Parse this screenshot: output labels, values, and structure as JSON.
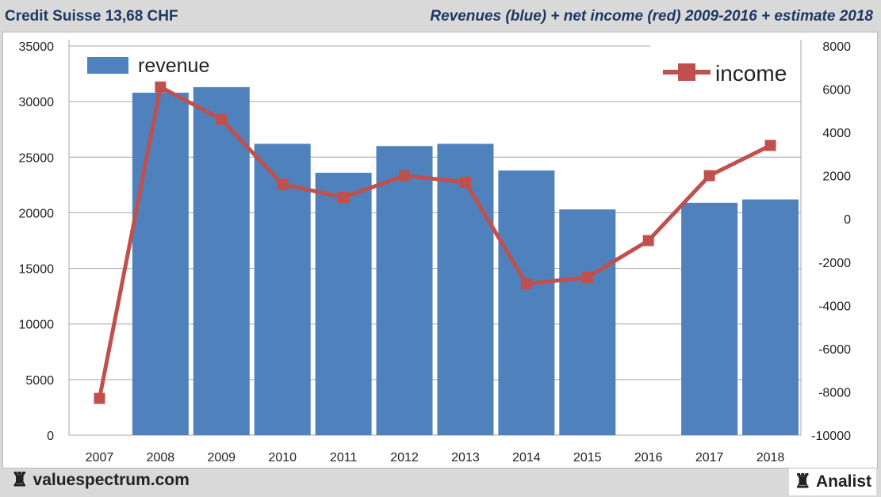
{
  "header": {
    "left": "Credit Suisse 13,68 CHF",
    "right": "Revenues (blue) + net income (red) 2009-2016 + estimate 2018"
  },
  "footer": {
    "left": "valuespectrum.com",
    "right": "Analist",
    "icon": "rook-icon"
  },
  "chart_data": {
    "type": "bar+line",
    "categories": [
      "2007",
      "2008",
      "2009",
      "2010",
      "2011",
      "2012",
      "2013",
      "2014",
      "2015",
      "2016",
      "2017",
      "2018"
    ],
    "series": [
      {
        "name": "revenue",
        "axis": "left",
        "type": "bar",
        "color": "#4f81bd",
        "values": [
          null,
          30800,
          31300,
          26200,
          23600,
          26000,
          26200,
          23800,
          20300,
          null,
          20900,
          21200
        ]
      },
      {
        "name": "income",
        "axis": "right",
        "type": "line",
        "color": "#c0504d",
        "values": [
          -8300,
          6100,
          4600,
          1600,
          1000,
          2000,
          1700,
          -3000,
          -2700,
          -1000,
          2000,
          3400
        ]
      }
    ],
    "ylim_left": [
      0,
      35000
    ],
    "yticks_left": [
      0,
      5000,
      10000,
      15000,
      20000,
      25000,
      30000,
      35000
    ],
    "ylim_right": [
      -10000,
      8000
    ],
    "yticks_right": [
      -10000,
      -8000,
      -6000,
      -4000,
      -2000,
      0,
      2000,
      4000,
      6000,
      8000
    ],
    "legend": [
      {
        "label": "revenue",
        "position": "top-left"
      },
      {
        "label": "income",
        "position": "top-right"
      }
    ],
    "grid": true
  }
}
